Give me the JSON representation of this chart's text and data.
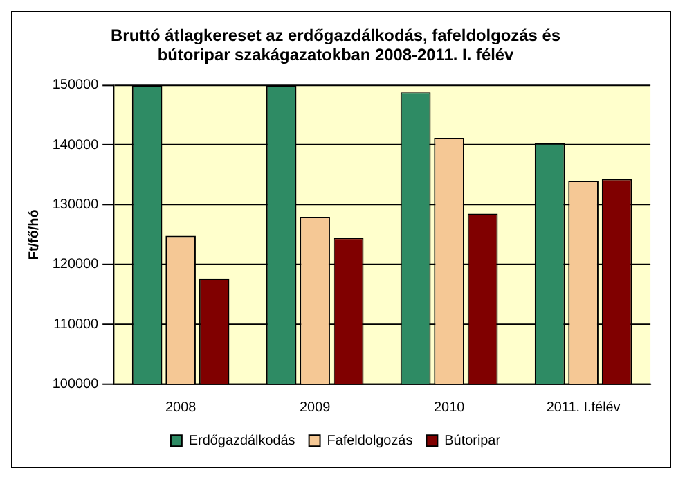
{
  "chart_data": {
    "type": "bar",
    "title": "Bruttó átlagkereset az erdőgazdálkodás, fafeldolgozás és bútoripar szakágazatokban 2008-2011. I. félév",
    "ylabel": "Ft/fő/hó",
    "categories": [
      "2008",
      "2009",
      "2010",
      "2011. I.félév"
    ],
    "series": [
      {
        "name": "Erdőgazdálkodás",
        "color": "#2e8b64",
        "values": [
          150000,
          150000,
          148800,
          140300
        ]
      },
      {
        "name": "Fafeldolgozás",
        "color": "#f5c895",
        "values": [
          124800,
          128000,
          141200,
          134000
        ]
      },
      {
        "name": "Bútoripar",
        "color": "#800000",
        "values": [
          117600,
          124500,
          128500,
          134300
        ]
      }
    ],
    "ylim": [
      100000,
      150000
    ],
    "yticks": [
      100000,
      110000,
      120000,
      130000,
      140000,
      150000
    ],
    "grid": "y",
    "legend": "bottom"
  }
}
